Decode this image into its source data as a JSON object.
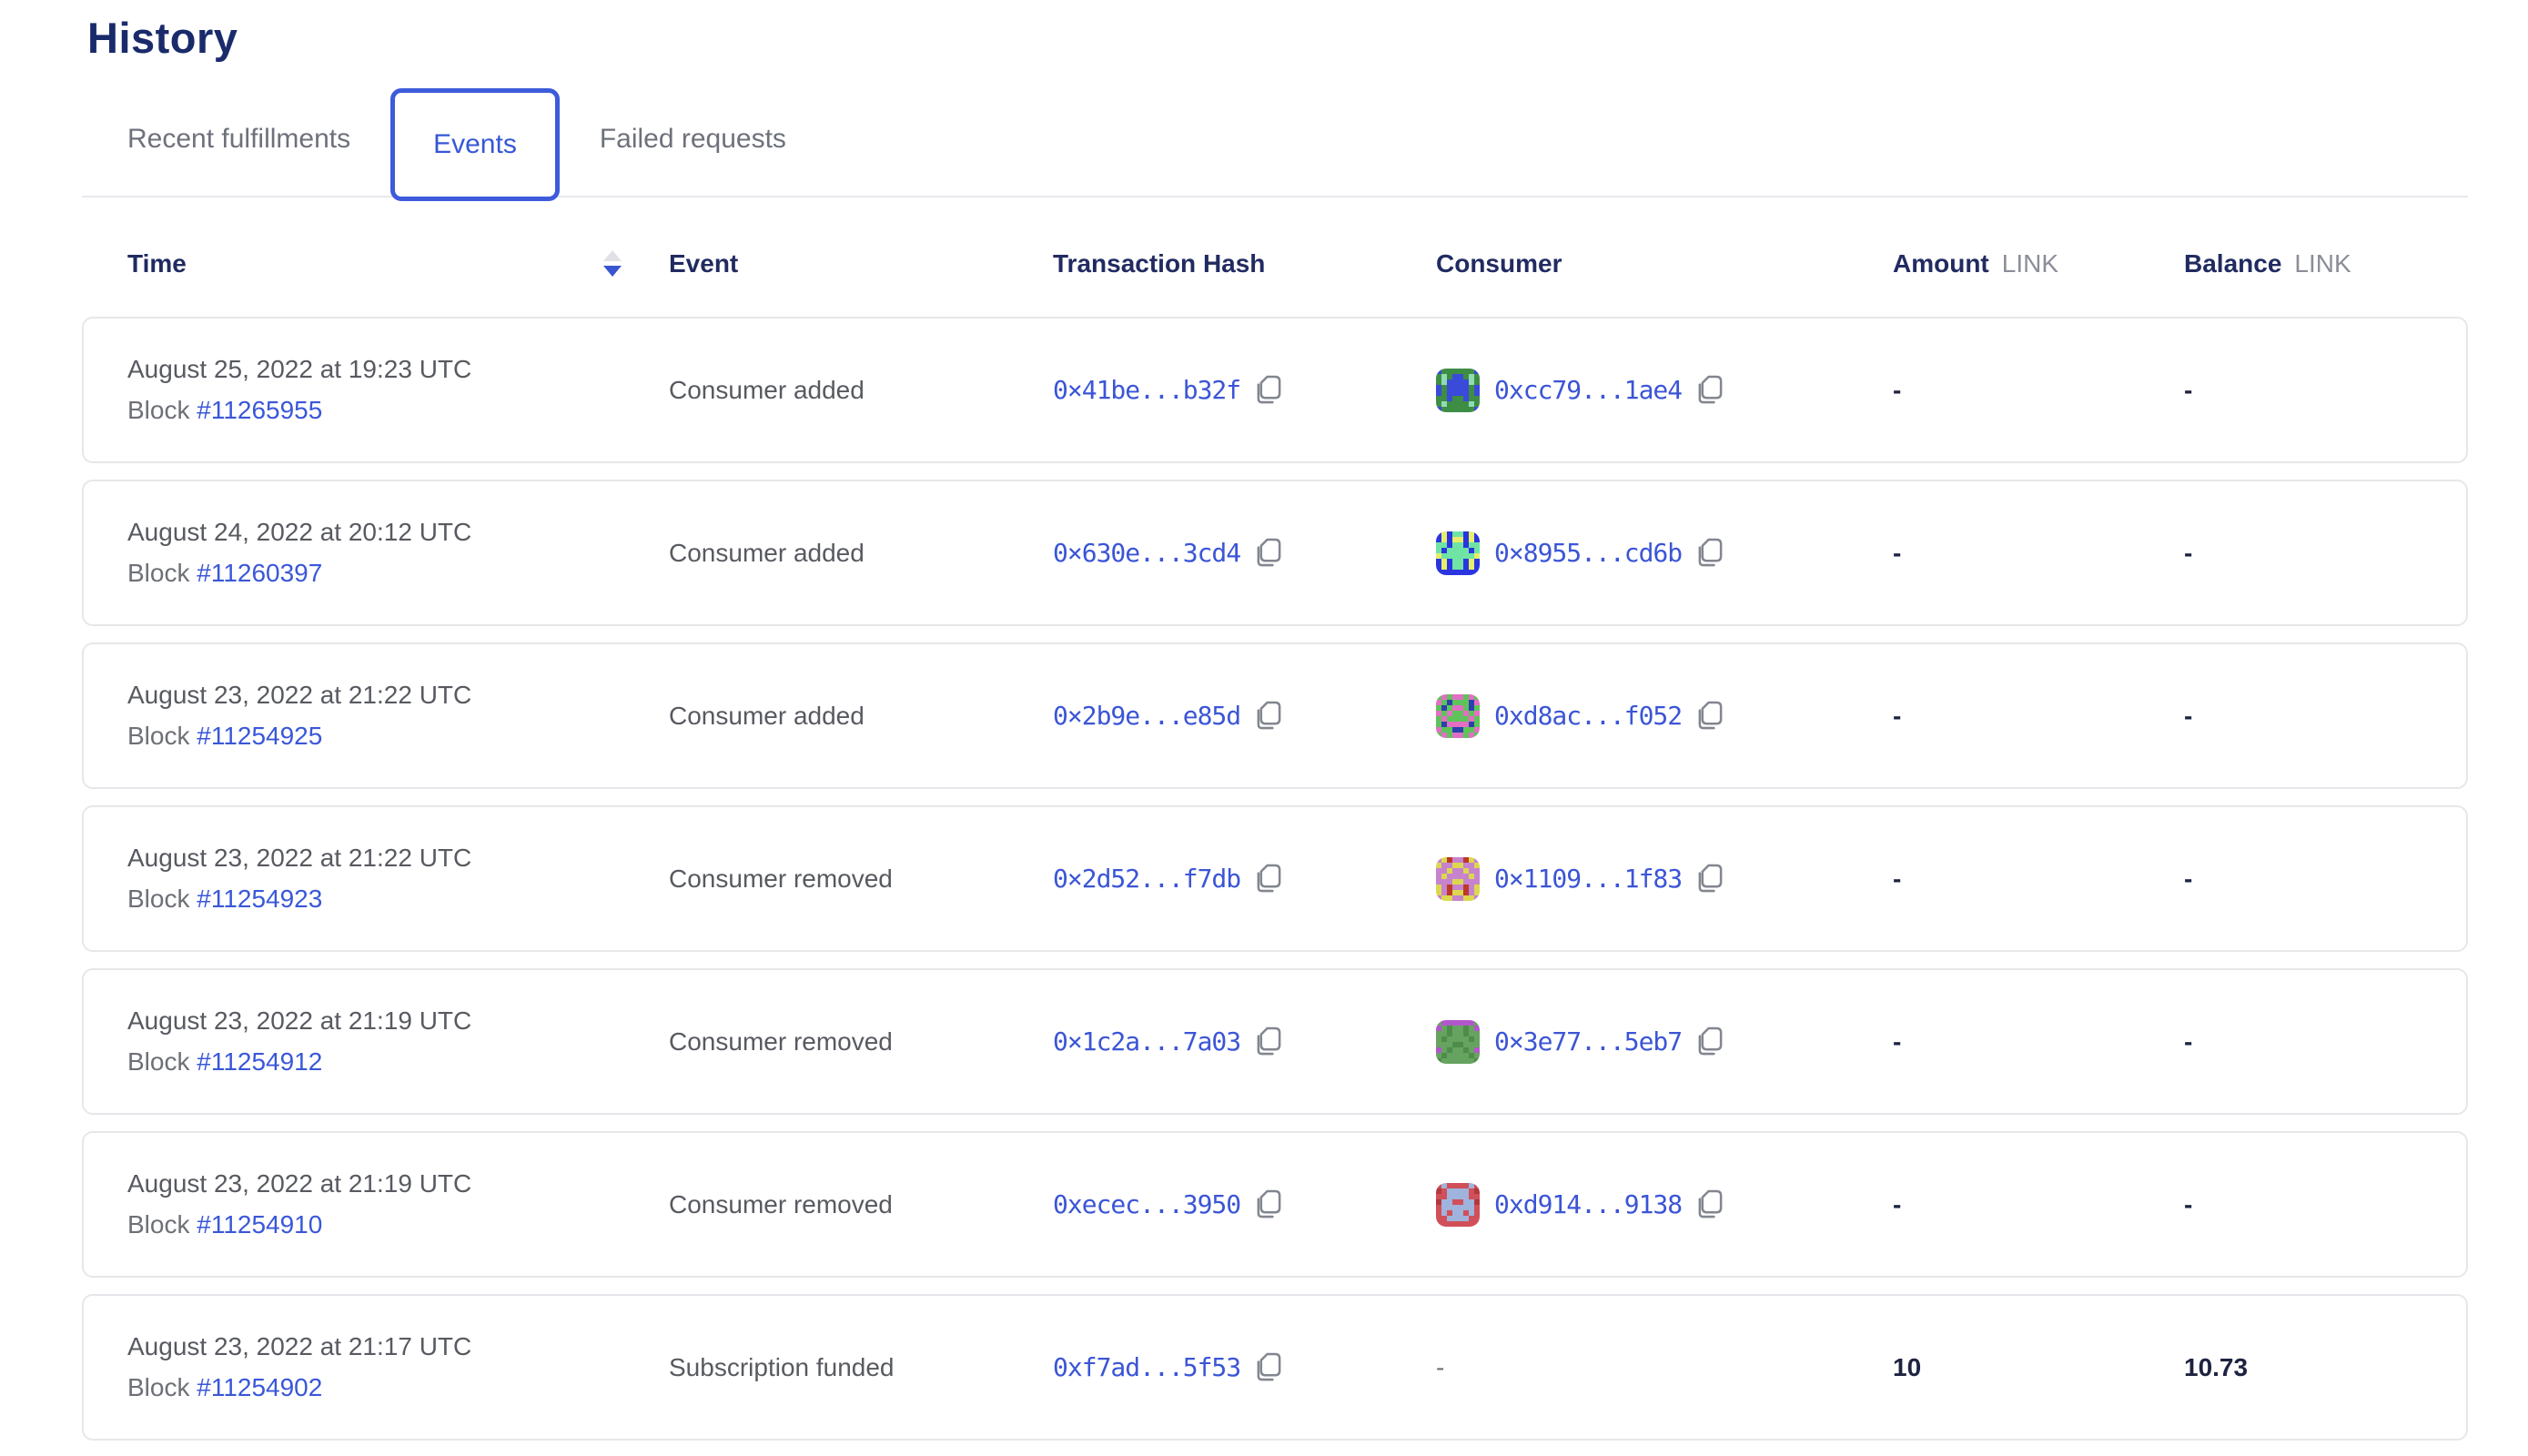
{
  "page": {
    "title": "History"
  },
  "tabs": [
    {
      "label": "Recent fulfillments",
      "active": false
    },
    {
      "label": "Events",
      "active": true
    },
    {
      "label": "Failed requests",
      "active": false
    }
  ],
  "colors": {
    "heading_navy": "#1a2b6b",
    "accent_blue": "#3d5bdb",
    "link_blue": "#3a57d8"
  },
  "table": {
    "columns": {
      "time": "Time",
      "event": "Event",
      "tx": "Transaction Hash",
      "consumer": "Consumer",
      "amount": "Amount",
      "balance": "Balance",
      "unit": "LINK"
    },
    "sort": {
      "column": "time",
      "direction": "desc"
    },
    "rows": [
      {
        "time": "August 25, 2022 at 19:23 UTC",
        "block_label": "Block",
        "block_number": "#11265955",
        "event": "Consumer added",
        "tx_hash": "0×41be...b32f",
        "consumer": {
          "address": "0xcc79...1ae4",
          "identicon": {
            "palette": {
              "g": "#3e8d45",
              "b": "#3a4ad9",
              "m": "#90dcb2"
            },
            "pattern": [
              "bggggggb",
              "gmgbbgmg",
              "gmbbbbmg",
              "bgbbbbgb",
              "bgbbbbgb",
              "ggbggbgg",
              "gmggggmg",
              "bggggggb"
            ]
          }
        },
        "amount": "-",
        "balance": "-"
      },
      {
        "time": "August 24, 2022 at 20:12 UTC",
        "block_label": "Block",
        "block_number": "#11260397",
        "event": "Consumer added",
        "tx_hash": "0×630e...3cd4",
        "consumer": {
          "address": "0×8955...cd6b",
          "identicon": {
            "palette": {
              "b": "#2a35e0",
              "y": "#e7ee69",
              "m": "#6fe4a5"
            },
            "pattern": [
              "bybmmbyb",
              "bybyybyb",
              "mmbmmbmm",
              "mbmmmmbm",
              "ymmmmmmy",
              "bybmmbyb",
              "bybmmbyb",
              "bbbbbbbb"
            ]
          }
        },
        "amount": "-",
        "balance": "-"
      },
      {
        "time": "August 23, 2022 at 21:22 UTC",
        "block_label": "Block",
        "block_number": "#11254925",
        "event": "Consumer added",
        "tx_hash": "0×2b9e...e85d",
        "consumer": {
          "address": "0xd8ac...f052",
          "identicon": {
            "palette": {
              "g": "#5ec35a",
              "p": "#e26fc3",
              "n": "#2c41ab"
            },
            "pattern": [
              "gpgppgpg",
              "pgngggnp",
              "gngppgng",
              "pgpggpgp",
              "gpggggpg",
              "gnppppng",
              "pggnnggp",
              "gpgppgpg"
            ]
          }
        },
        "amount": "-",
        "balance": "-"
      },
      {
        "time": "August 23, 2022 at 21:22 UTC",
        "block_label": "Block",
        "block_number": "#11254923",
        "event": "Consumer removed",
        "tx_hash": "0×2d52...f7db",
        "consumer": {
          "address": "0×1109...1f83",
          "identicon": {
            "palette": {
              "o": "#c783cd",
              "y": "#dbd84f",
              "r": "#bc3a28"
            },
            "pattern": [
              "oyrooryo",
              "yooyyooy",
              "ooyooyoo",
              "oyooooyo",
              "oooyyooo",
              "yorooroy",
              "yoryyroy",
              "oyyooyyo"
            ]
          }
        },
        "amount": "-",
        "balance": "-"
      },
      {
        "time": "August 23, 2022 at 21:19 UTC",
        "block_label": "Block",
        "block_number": "#11254912",
        "event": "Consumer removed",
        "tx_hash": "0×1c2a...7a03",
        "consumer": {
          "address": "0×3e77...5eb7",
          "identicon": {
            "palette": {
              "g": "#66a360",
              "d": "#4d8c49",
              "p": "#b257cb"
            },
            "pattern": [
              "gppppppg",
              "pgdggdgp",
              "ggdggdgg",
              "gdggggdg",
              "gggddggg",
              "pgdggdgp",
              "gdggggdg",
              "dggggggd"
            ]
          }
        },
        "amount": "-",
        "balance": "-"
      },
      {
        "time": "August 23, 2022 at 21:19 UTC",
        "block_label": "Block",
        "block_number": "#11254910",
        "event": "Consumer removed",
        "tx_hash": "0xecec...3950",
        "consumer": {
          "address": "0xd914...9138",
          "identicon": {
            "palette": {
              "r": "#d04f59",
              "l": "#9fb3dc",
              "d": "#b2383f"
            },
            "pattern": [
              "rlrrrrlr",
              "drllllrd",
              "rrllllrr",
              "dllrrlld",
              "rllllllr",
              "rlrllrlr",
              "rrllllrr",
              "rrrrrrrr"
            ]
          }
        },
        "amount": "-",
        "balance": "-"
      },
      {
        "time": "August 23, 2022 at 21:17 UTC",
        "block_label": "Block",
        "block_number": "#11254902",
        "event": "Subscription funded",
        "tx_hash": "0xf7ad...5f53",
        "consumer": {
          "address": "-",
          "identicon": null
        },
        "amount": "10",
        "balance": "10.73"
      }
    ]
  }
}
